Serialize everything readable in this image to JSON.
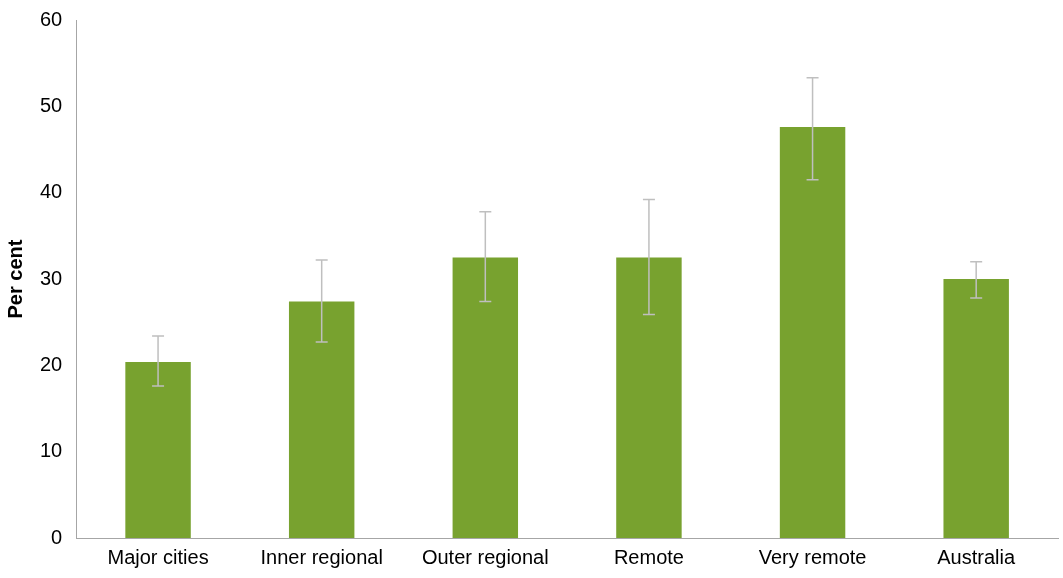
{
  "chart_data": {
    "type": "bar",
    "ylabel": "Per cent",
    "categories": [
      "Major cities",
      "Inner regional",
      "Outer regional",
      "Remote",
      "Very remote",
      "Australia"
    ],
    "values": [
      20.4,
      27.4,
      32.5,
      32.5,
      47.6,
      30.0
    ],
    "errors": [
      [
        17.6,
        23.4
      ],
      [
        22.7,
        32.2
      ],
      [
        27.4,
        37.8
      ],
      [
        25.9,
        39.2
      ],
      [
        41.5,
        53.3
      ],
      [
        27.8,
        32.0
      ]
    ],
    "color": "#78a22f",
    "ylim": [
      0,
      60
    ],
    "yticks": [
      0,
      10,
      20,
      30,
      40,
      50,
      60
    ],
    "grid": false,
    "legend": false
  }
}
